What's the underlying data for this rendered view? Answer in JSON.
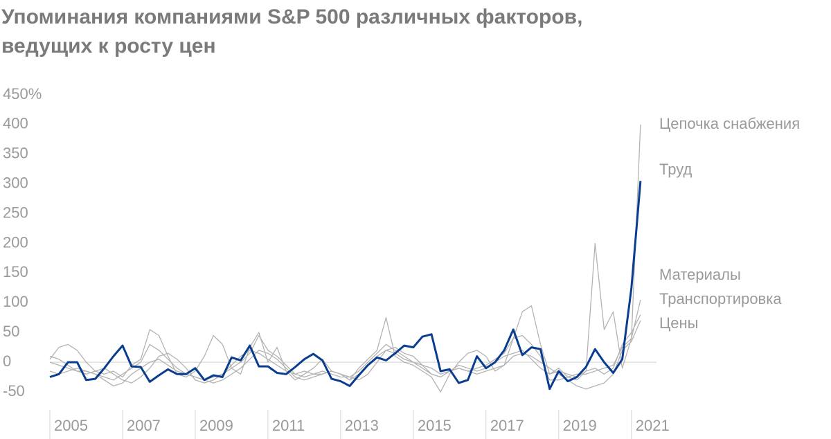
{
  "chart_data": {
    "type": "line",
    "title": [
      "Упоминания компаниями S&P 500 различных факторов,",
      "ведущих к росту цен"
    ],
    "x": [
      2005,
      2005.25,
      2005.5,
      2005.75,
      2006,
      2006.25,
      2006.5,
      2006.75,
      2007,
      2007.25,
      2007.5,
      2007.75,
      2008,
      2008.25,
      2008.5,
      2008.75,
      2009,
      2009.25,
      2009.5,
      2009.75,
      2010,
      2010.25,
      2010.5,
      2010.75,
      2011,
      2011.25,
      2011.5,
      2011.75,
      2012,
      2012.25,
      2012.5,
      2012.75,
      2013,
      2013.25,
      2013.5,
      2013.75,
      2014,
      2014.25,
      2014.5,
      2014.75,
      2015,
      2015.25,
      2015.5,
      2015.75,
      2016,
      2016.25,
      2016.5,
      2016.75,
      2017,
      2017.25,
      2017.5,
      2017.75,
      2018,
      2018.25,
      2018.5,
      2018.75,
      2019,
      2019.25,
      2019.5,
      2019.75,
      2020,
      2020.25,
      2020.5,
      2020.75,
      2021,
      2021.25
    ],
    "xlim": [
      2005,
      2021.5
    ],
    "xticks": [
      2005,
      2007,
      2009,
      2011,
      2013,
      2015,
      2017,
      2019,
      2021
    ],
    "ylim": [
      -50,
      450
    ],
    "yticks": [
      -50,
      0,
      50,
      100,
      150,
      200,
      250,
      300,
      350,
      {
        "value": 450,
        "label": "450%"
      },
      400
    ],
    "series": [
      {
        "name": "Цепочка снабжения",
        "color": "#b3b3b3",
        "values": [
          5,
          25,
          30,
          20,
          0,
          -15,
          -20,
          -15,
          -25,
          -5,
          5,
          55,
          45,
          10,
          -20,
          -25,
          -15,
          10,
          45,
          30,
          -10,
          -20,
          25,
          50,
          0,
          25,
          -15,
          -30,
          -20,
          -10,
          5,
          -15,
          -20,
          -30,
          -10,
          5,
          20,
          75,
          10,
          0,
          -5,
          -15,
          -25,
          -50,
          -20,
          0,
          15,
          20,
          10,
          -15,
          -5,
          40,
          85,
          95,
          30,
          -20,
          -10,
          -25,
          -30,
          -15,
          200,
          55,
          85,
          -10,
          40,
          400
        ]
      },
      {
        "name": "Материалы",
        "color": "#b3b3b3",
        "values": [
          0,
          -5,
          -10,
          -15,
          -15,
          -20,
          -25,
          -30,
          -20,
          -10,
          0,
          30,
          20,
          5,
          -10,
          -20,
          -25,
          -30,
          -25,
          -20,
          -10,
          0,
          15,
          45,
          20,
          10,
          -5,
          -20,
          -25,
          -20,
          -15,
          -20,
          -25,
          -25,
          -15,
          0,
          15,
          30,
          20,
          10,
          0,
          -10,
          -20,
          -25,
          -15,
          -10,
          -15,
          -10,
          -5,
          5,
          15,
          40,
          45,
          30,
          10,
          -30,
          -30,
          -25,
          -20,
          -20,
          -15,
          -10,
          -5,
          25,
          40,
          105
        ]
      },
      {
        "name": "Транспортировка",
        "color": "#b3b3b3",
        "values": [
          10,
          5,
          -5,
          -15,
          -20,
          -15,
          -10,
          -20,
          -30,
          -35,
          -25,
          -10,
          10,
          15,
          5,
          -10,
          -30,
          -35,
          -30,
          -20,
          -5,
          10,
          20,
          15,
          5,
          -5,
          -15,
          -20,
          -15,
          -20,
          -20,
          -15,
          -20,
          -30,
          -20,
          -5,
          10,
          20,
          25,
          15,
          10,
          -5,
          -20,
          -25,
          -15,
          -5,
          -10,
          -15,
          -10,
          0,
          10,
          15,
          20,
          5,
          -10,
          -20,
          -15,
          -20,
          -25,
          -15,
          -10,
          -20,
          -10,
          30,
          50,
          80
        ]
      },
      {
        "name": "Цены",
        "color": "#b3b3b3",
        "values": [
          -15,
          -20,
          -15,
          -10,
          -15,
          -20,
          -30,
          -40,
          -35,
          -20,
          -10,
          0,
          5,
          -5,
          -15,
          -20,
          -25,
          -30,
          -35,
          -30,
          -20,
          -10,
          5,
          20,
          15,
          5,
          -10,
          -25,
          -30,
          -25,
          -20,
          -15,
          -20,
          -25,
          -30,
          -20,
          0,
          20,
          15,
          5,
          0,
          -5,
          -10,
          -20,
          -15,
          -10,
          -15,
          -20,
          -15,
          -10,
          -5,
          10,
          15,
          10,
          0,
          -10,
          -20,
          -30,
          -40,
          -45,
          -40,
          -35,
          -20,
          20,
          35,
          70
        ]
      },
      {
        "name": "Труд",
        "color": "#0a3d8f",
        "values": [
          -25,
          -20,
          0,
          0,
          -30,
          -28,
          -10,
          10,
          28,
          -7,
          -8,
          -33,
          -22,
          -12,
          -20,
          -20,
          -10,
          -30,
          -22,
          -25,
          8,
          3,
          28,
          -7,
          -7,
          -18,
          -20,
          -8,
          5,
          14,
          3,
          -28,
          -32,
          -40,
          -22,
          -5,
          8,
          3,
          15,
          28,
          25,
          43,
          47,
          -15,
          -12,
          -35,
          -30,
          10,
          -10,
          0,
          20,
          55,
          12,
          25,
          22,
          -45,
          -15,
          -32,
          -25,
          -8,
          22,
          0,
          -18,
          5,
          125,
          305
        ]
      }
    ]
  }
}
